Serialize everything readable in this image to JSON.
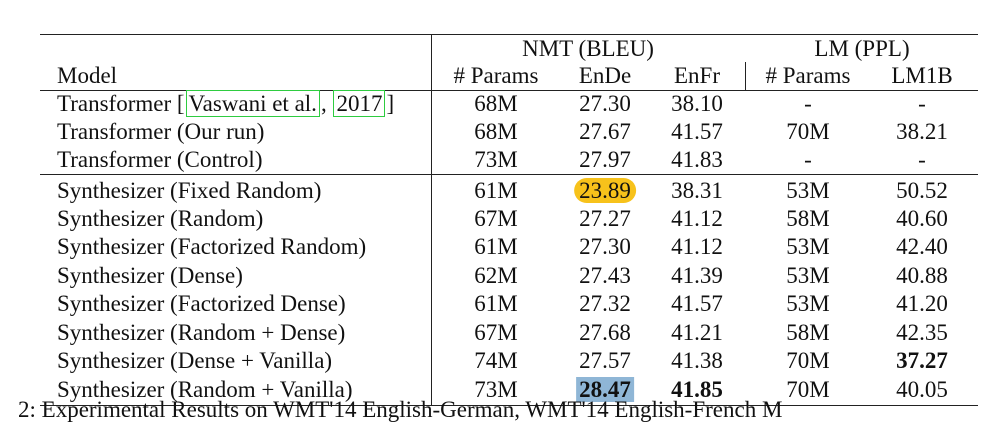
{
  "table": {
    "group_headers": {
      "nmt": "NMT (BLEU)",
      "lm": "LM (PPL)"
    },
    "columns": [
      "Model",
      "# Params",
      "EnDe",
      "EnFr",
      "# Params",
      "LM1B"
    ],
    "rows": [
      {
        "model_prefix": "Transformer [",
        "cite_author": "Vaswani et al.",
        "cite_sep": ", ",
        "cite_year": "2017",
        "model_suffix": "]",
        "params": "68M",
        "ende": "27.30",
        "enfr": "38.10",
        "lm_params": "-",
        "lm1b": "-"
      },
      {
        "model": "Transformer (Our run)",
        "params": "68M",
        "ende": "27.67",
        "enfr": "41.57",
        "lm_params": "70M",
        "lm1b": "38.21"
      },
      {
        "model": "Transformer (Control)",
        "params": "73M",
        "ende": "27.97",
        "enfr": "41.83",
        "lm_params": "-",
        "lm1b": "-"
      },
      {
        "model": "Synthesizer (Fixed Random)",
        "params": "61M",
        "ende": "23.89",
        "enfr": "38.31",
        "lm_params": "53M",
        "lm1b": "50.52"
      },
      {
        "model": "Synthesizer (Random)",
        "params": "67M",
        "ende": "27.27",
        "enfr": "41.12",
        "lm_params": "58M",
        "lm1b": "40.60"
      },
      {
        "model": "Synthesizer (Factorized Random)",
        "params": "61M",
        "ende": "27.30",
        "enfr": "41.12",
        "lm_params": "53M",
        "lm1b": "42.40"
      },
      {
        "model": "Synthesizer (Dense)",
        "params": "62M",
        "ende": "27.43",
        "enfr": "41.39",
        "lm_params": "53M",
        "lm1b": "40.88"
      },
      {
        "model": "Synthesizer (Factorized Dense)",
        "params": "61M",
        "ende": "27.32",
        "enfr": "41.57",
        "lm_params": "53M",
        "lm1b": "41.20"
      },
      {
        "model": "Synthesizer (Random + Dense)",
        "params": "67M",
        "ende": "27.68",
        "enfr": "41.21",
        "lm_params": "58M",
        "lm1b": "42.35"
      },
      {
        "model": "Synthesizer (Dense + Vanilla)",
        "params": "74M",
        "ende": "27.57",
        "enfr": "41.38",
        "lm_params": "70M",
        "lm1b": "37.27"
      },
      {
        "model": "Synthesizer (Random + Vanilla)",
        "params": "73M",
        "ende": "28.47",
        "enfr": "41.85",
        "lm_params": "70M",
        "lm1b": "40.05"
      }
    ]
  },
  "caption": "2:  Experimental Results on WMT'14 English-German, WMT'14 English-French M",
  "colors": {
    "orange_highlight": "#f7c21b",
    "blue_highlight": "#8fb6d6",
    "citation_box": "#2ecc40"
  }
}
